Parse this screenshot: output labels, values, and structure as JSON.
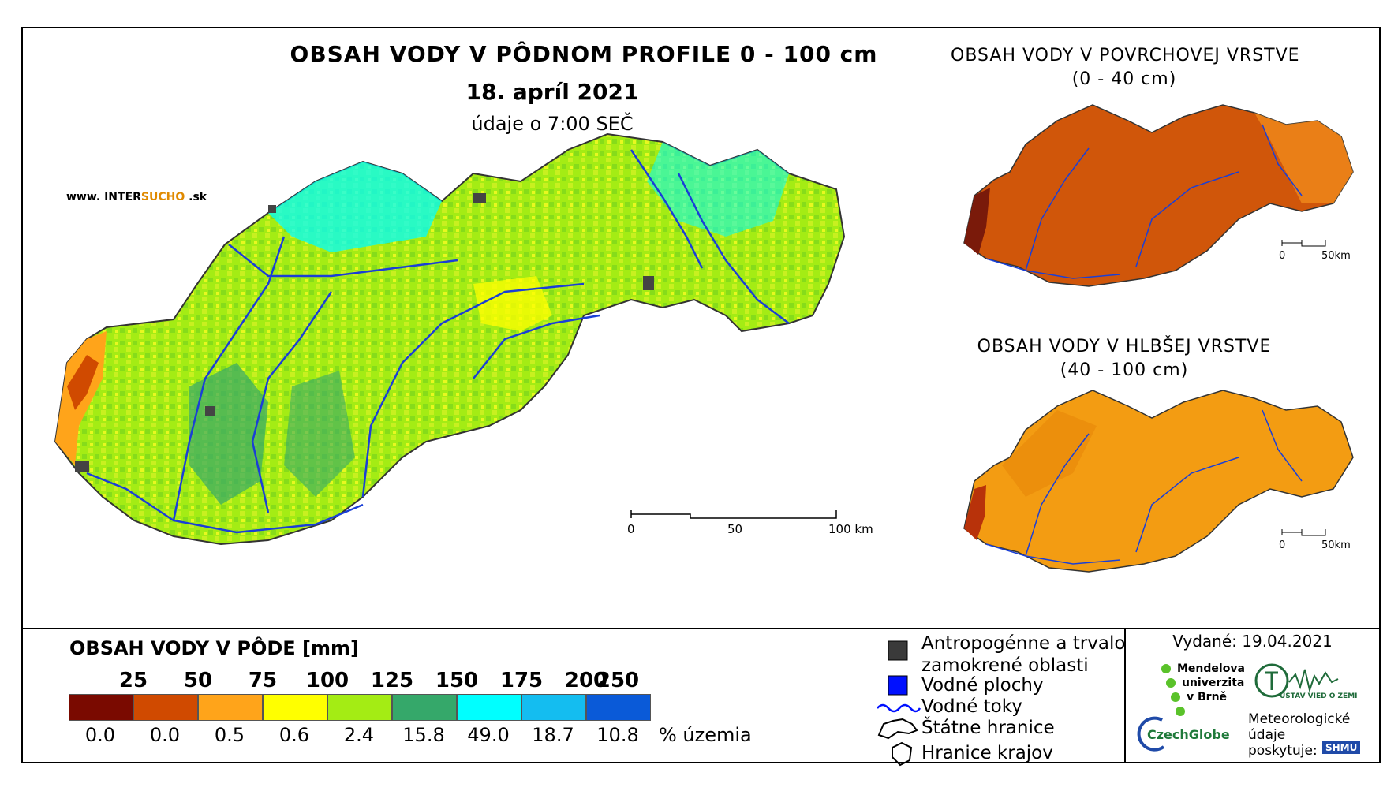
{
  "main": {
    "title": "OBSAH VODY V PÔDNOM PROFILE 0 - 100 cm",
    "date": "18. apríl 2021",
    "time": "údaje o 7:00 SEČ",
    "website_prefix": "www. INTER",
    "website_mid": "SUCHO",
    "website_suffix": " .sk",
    "scale": {
      "labels": [
        "0",
        "50",
        "100 km"
      ]
    }
  },
  "inset_top": {
    "title_line1": "OBSAH VODY V POVRCHOVEJ VRSTVE",
    "title_line2": "(0 - 40 cm)",
    "scale": {
      "labels": [
        "0",
        "50km"
      ]
    }
  },
  "inset_bottom": {
    "title_line1": "OBSAH VODY V HLBŠEJ VRSTVE",
    "title_line2": "(40 - 100 cm)",
    "scale": {
      "labels": [
        "0",
        "50km"
      ]
    }
  },
  "legend": {
    "title": "OBSAH VODY V PÔDE [mm]",
    "thresholds": [
      "25",
      "50",
      "75",
      "100",
      "125",
      "150",
      "175",
      "200",
      "250"
    ],
    "classes": [
      {
        "color": "#7a0a00",
        "percent": "0.0"
      },
      {
        "color": "#d04a00",
        "percent": "0.0"
      },
      {
        "color": "#ffa41a",
        "percent": "0.5"
      },
      {
        "color": "#ffff00",
        "percent": "0.6"
      },
      {
        "color": "#a4ec14",
        "percent": "2.4"
      },
      {
        "color": "#35a86a",
        "percent": "15.8"
      },
      {
        "color": "#00ffff",
        "percent": "49.0"
      },
      {
        "color": "#14bdf0",
        "percent": "18.7"
      },
      {
        "color": "#0a5ad8",
        "percent": "10.8"
      }
    ],
    "percent_unit": "% územia"
  },
  "map_legend": {
    "items": [
      {
        "icon": "dark-square-icon",
        "label": "Antropogénne a trvalo zamokrené oblasti",
        "line1": "Antropogénne a trvalo",
        "line2": "zamokrené oblasti"
      },
      {
        "icon": "blue-square-icon",
        "label": "Vodné plochy"
      },
      {
        "icon": "wavy-line-icon",
        "label": "Vodné toky"
      },
      {
        "icon": "border-outline-icon",
        "label": "Štátne hranice"
      },
      {
        "icon": "region-outline-icon",
        "label": "Hranice krajov"
      }
    ]
  },
  "footer": {
    "issued": "Vydané: 19.04.2021",
    "mendel": [
      "Mendelova",
      "univerzita",
      "v Brně"
    ],
    "czechglobe": "CzechGlobe",
    "ustav": "ÚSTAV VIED O ZEMI",
    "meteo": [
      "Meteorologické",
      "údaje",
      "poskytuje:"
    ],
    "shmu": "SHMU"
  },
  "colors": {
    "main_fill": "#a4ec14",
    "top_fill": "#d0560a",
    "bottom_fill": "#f39c12",
    "river": "#1a3fd6"
  }
}
